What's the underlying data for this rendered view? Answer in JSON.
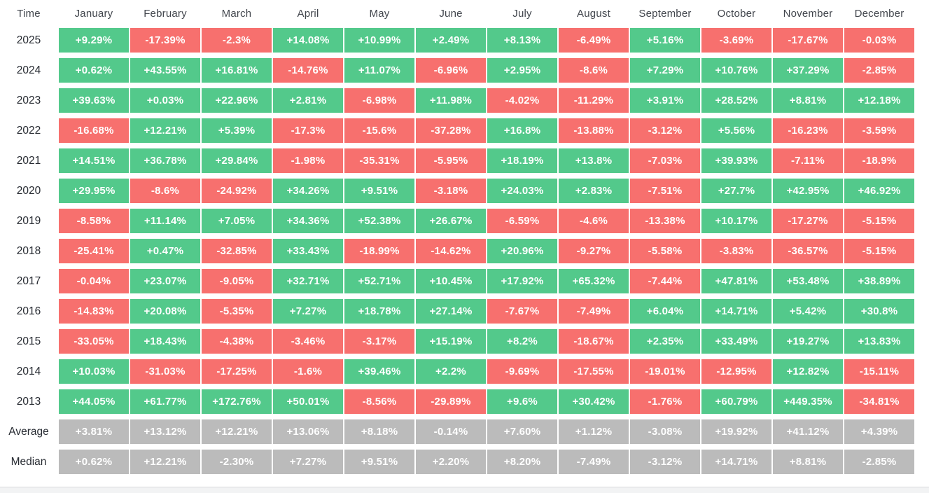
{
  "table": {
    "columns": [
      "Time",
      "January",
      "February",
      "March",
      "April",
      "May",
      "June",
      "July",
      "August",
      "September",
      "October",
      "November",
      "December"
    ],
    "rows": [
      {
        "label": "2025",
        "type": "year",
        "values": [
          "+9.29%",
          "-17.39%",
          "-2.3%",
          "+14.08%",
          "+10.99%",
          "+2.49%",
          "+8.13%",
          "-6.49%",
          "+5.16%",
          "-3.69%",
          "-17.67%",
          "-0.03%"
        ]
      },
      {
        "label": "2024",
        "type": "year",
        "values": [
          "+0.62%",
          "+43.55%",
          "+16.81%",
          "-14.76%",
          "+11.07%",
          "-6.96%",
          "+2.95%",
          "-8.6%",
          "+7.29%",
          "+10.76%",
          "+37.29%",
          "-2.85%"
        ]
      },
      {
        "label": "2023",
        "type": "year",
        "values": [
          "+39.63%",
          "+0.03%",
          "+22.96%",
          "+2.81%",
          "-6.98%",
          "+11.98%",
          "-4.02%",
          "-11.29%",
          "+3.91%",
          "+28.52%",
          "+8.81%",
          "+12.18%"
        ]
      },
      {
        "label": "2022",
        "type": "year",
        "values": [
          "-16.68%",
          "+12.21%",
          "+5.39%",
          "-17.3%",
          "-15.6%",
          "-37.28%",
          "+16.8%",
          "-13.88%",
          "-3.12%",
          "+5.56%",
          "-16.23%",
          "-3.59%"
        ]
      },
      {
        "label": "2021",
        "type": "year",
        "values": [
          "+14.51%",
          "+36.78%",
          "+29.84%",
          "-1.98%",
          "-35.31%",
          "-5.95%",
          "+18.19%",
          "+13.8%",
          "-7.03%",
          "+39.93%",
          "-7.11%",
          "-18.9%"
        ]
      },
      {
        "label": "2020",
        "type": "year",
        "values": [
          "+29.95%",
          "-8.6%",
          "-24.92%",
          "+34.26%",
          "+9.51%",
          "-3.18%",
          "+24.03%",
          "+2.83%",
          "-7.51%",
          "+27.7%",
          "+42.95%",
          "+46.92%"
        ]
      },
      {
        "label": "2019",
        "type": "year",
        "values": [
          "-8.58%",
          "+11.14%",
          "+7.05%",
          "+34.36%",
          "+52.38%",
          "+26.67%",
          "-6.59%",
          "-4.6%",
          "-13.38%",
          "+10.17%",
          "-17.27%",
          "-5.15%"
        ]
      },
      {
        "label": "2018",
        "type": "year",
        "values": [
          "-25.41%",
          "+0.47%",
          "-32.85%",
          "+33.43%",
          "-18.99%",
          "-14.62%",
          "+20.96%",
          "-9.27%",
          "-5.58%",
          "-3.83%",
          "-36.57%",
          "-5.15%"
        ]
      },
      {
        "label": "2017",
        "type": "year",
        "values": [
          "-0.04%",
          "+23.07%",
          "-9.05%",
          "+32.71%",
          "+52.71%",
          "+10.45%",
          "+17.92%",
          "+65.32%",
          "-7.44%",
          "+47.81%",
          "+53.48%",
          "+38.89%"
        ]
      },
      {
        "label": "2016",
        "type": "year",
        "values": [
          "-14.83%",
          "+20.08%",
          "-5.35%",
          "+7.27%",
          "+18.78%",
          "+27.14%",
          "-7.67%",
          "-7.49%",
          "+6.04%",
          "+14.71%",
          "+5.42%",
          "+30.8%"
        ]
      },
      {
        "label": "2015",
        "type": "year",
        "values": [
          "-33.05%",
          "+18.43%",
          "-4.38%",
          "-3.46%",
          "-3.17%",
          "+15.19%",
          "+8.2%",
          "-18.67%",
          "+2.35%",
          "+33.49%",
          "+19.27%",
          "+13.83%"
        ]
      },
      {
        "label": "2014",
        "type": "year",
        "values": [
          "+10.03%",
          "-31.03%",
          "-17.25%",
          "-1.6%",
          "+39.46%",
          "+2.2%",
          "-9.69%",
          "-17.55%",
          "-19.01%",
          "-12.95%",
          "+12.82%",
          "-15.11%"
        ]
      },
      {
        "label": "2013",
        "type": "year",
        "values": [
          "+44.05%",
          "+61.77%",
          "+172.76%",
          "+50.01%",
          "-8.56%",
          "-29.89%",
          "+9.6%",
          "+30.42%",
          "-1.76%",
          "+60.79%",
          "+449.35%",
          "-34.81%"
        ]
      },
      {
        "label": "Average",
        "type": "summary",
        "values": [
          "+3.81%",
          "+13.12%",
          "+12.21%",
          "+13.06%",
          "+8.18%",
          "-0.14%",
          "+7.60%",
          "+1.12%",
          "-3.08%",
          "+19.92%",
          "+41.12%",
          "+4.39%"
        ]
      },
      {
        "label": "Median",
        "type": "summary",
        "values": [
          "+0.62%",
          "+12.21%",
          "-2.30%",
          "+7.27%",
          "+9.51%",
          "+2.20%",
          "+8.20%",
          "-7.49%",
          "-3.12%",
          "+14.71%",
          "+8.81%",
          "-2.85%"
        ]
      }
    ]
  },
  "colors": {
    "positive": "#53c98b",
    "negative": "#f7706e",
    "summary": "#bbbbbb",
    "cell_text": "#ffffff",
    "header_text": "#42464d",
    "row_label_text": "#262a31"
  },
  "chart_data": {
    "type": "heatmap",
    "title": "Monthly returns by year (%)",
    "x_categories": [
      "January",
      "February",
      "March",
      "April",
      "May",
      "June",
      "July",
      "August",
      "September",
      "October",
      "November",
      "December"
    ],
    "y_categories": [
      "2025",
      "2024",
      "2023",
      "2022",
      "2021",
      "2020",
      "2019",
      "2018",
      "2017",
      "2016",
      "2015",
      "2014",
      "2013",
      "Average",
      "Median"
    ],
    "color_encoding": {
      "positive": "#53c98b",
      "negative": "#f7706e",
      "summary_row": "#bbbbbb"
    },
    "series": [
      {
        "name": "2025",
        "values": [
          9.29,
          -17.39,
          -2.3,
          14.08,
          10.99,
          2.49,
          8.13,
          -6.49,
          5.16,
          -3.69,
          -17.67,
          -0.03
        ]
      },
      {
        "name": "2024",
        "values": [
          0.62,
          43.55,
          16.81,
          -14.76,
          11.07,
          -6.96,
          2.95,
          -8.6,
          7.29,
          10.76,
          37.29,
          -2.85
        ]
      },
      {
        "name": "2023",
        "values": [
          39.63,
          0.03,
          22.96,
          2.81,
          -6.98,
          11.98,
          -4.02,
          -11.29,
          3.91,
          28.52,
          8.81,
          12.18
        ]
      },
      {
        "name": "2022",
        "values": [
          -16.68,
          12.21,
          5.39,
          -17.3,
          -15.6,
          -37.28,
          16.8,
          -13.88,
          -3.12,
          5.56,
          -16.23,
          -3.59
        ]
      },
      {
        "name": "2021",
        "values": [
          14.51,
          36.78,
          29.84,
          -1.98,
          -35.31,
          -5.95,
          18.19,
          13.8,
          -7.03,
          39.93,
          -7.11,
          -18.9
        ]
      },
      {
        "name": "2020",
        "values": [
          29.95,
          -8.6,
          -24.92,
          34.26,
          9.51,
          -3.18,
          24.03,
          2.83,
          -7.51,
          27.7,
          42.95,
          46.92
        ]
      },
      {
        "name": "2019",
        "values": [
          -8.58,
          11.14,
          7.05,
          34.36,
          52.38,
          26.67,
          -6.59,
          -4.6,
          -13.38,
          10.17,
          -17.27,
          -5.15
        ]
      },
      {
        "name": "2018",
        "values": [
          -25.41,
          0.47,
          -32.85,
          33.43,
          -18.99,
          -14.62,
          20.96,
          -9.27,
          -5.58,
          -3.83,
          -36.57,
          -5.15
        ]
      },
      {
        "name": "2017",
        "values": [
          -0.04,
          23.07,
          -9.05,
          32.71,
          52.71,
          10.45,
          17.92,
          65.32,
          -7.44,
          47.81,
          53.48,
          38.89
        ]
      },
      {
        "name": "2016",
        "values": [
          -14.83,
          20.08,
          -5.35,
          7.27,
          18.78,
          27.14,
          -7.67,
          -7.49,
          6.04,
          14.71,
          5.42,
          30.8
        ]
      },
      {
        "name": "2015",
        "values": [
          -33.05,
          18.43,
          -4.38,
          -3.46,
          -3.17,
          15.19,
          8.2,
          -18.67,
          2.35,
          33.49,
          19.27,
          13.83
        ]
      },
      {
        "name": "2014",
        "values": [
          10.03,
          -31.03,
          -17.25,
          -1.6,
          39.46,
          2.2,
          -9.69,
          -17.55,
          -19.01,
          -12.95,
          12.82,
          -15.11
        ]
      },
      {
        "name": "2013",
        "values": [
          44.05,
          61.77,
          172.76,
          50.01,
          -8.56,
          -29.89,
          9.6,
          30.42,
          -1.76,
          60.79,
          449.35,
          -34.81
        ]
      },
      {
        "name": "Average",
        "values": [
          3.81,
          13.12,
          12.21,
          13.06,
          8.18,
          -0.14,
          7.6,
          1.12,
          -3.08,
          19.92,
          41.12,
          4.39
        ]
      },
      {
        "name": "Median",
        "values": [
          0.62,
          12.21,
          -2.3,
          7.27,
          9.51,
          2.2,
          8.2,
          -7.49,
          -3.12,
          14.71,
          8.81,
          -2.85
        ]
      }
    ]
  }
}
